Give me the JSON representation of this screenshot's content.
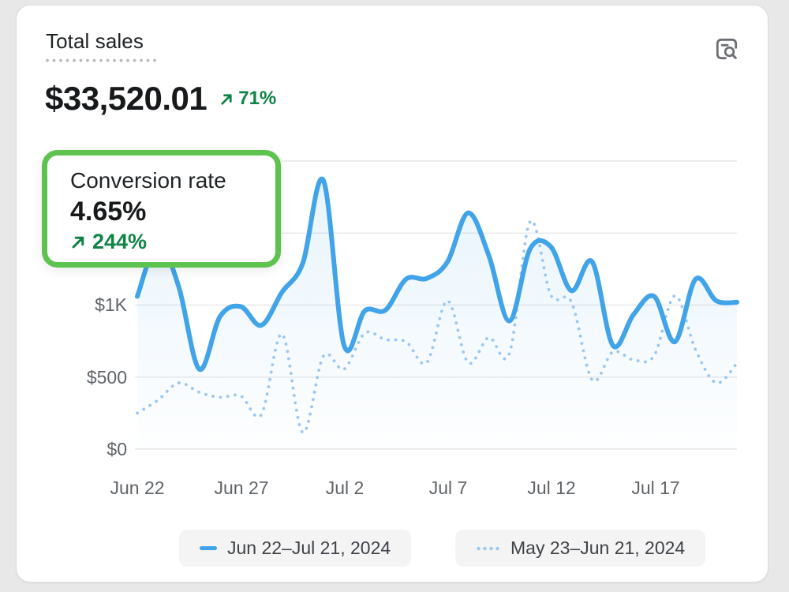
{
  "card": {
    "title": "Total sales",
    "value": "$33,520.01",
    "delta": "71%"
  },
  "tooltip": {
    "label": "Conversion rate",
    "value": "4.65%",
    "delta": "244%"
  },
  "icons": {
    "header_action": "view-report-magnifier-icon",
    "delta_arrow": "trend-up-arrow-icon"
  },
  "colors": {
    "primary_line": "#41a3e8",
    "compare_line": "#9cc7ef",
    "positive": "#0e8345",
    "highlight_border": "#5dc24e",
    "grid": "#e7e8e9",
    "axis_text": "#606468",
    "legend_bg": "#f4f4f5",
    "area_fill": "#41a3e8"
  },
  "chart_data": {
    "type": "line",
    "title": "Total sales over time",
    "xlabel": "",
    "ylabel": "",
    "ylim": [
      0,
      2000
    ],
    "grid_values": [
      0,
      500,
      1000,
      1500,
      2000
    ],
    "y_ticks": [
      "$0",
      "$500",
      "$1K"
    ],
    "x_ticks": [
      "Jun 22",
      "Jun 27",
      "Jul 2",
      "Jul 7",
      "Jul 12",
      "Jul 17"
    ],
    "x_tick_day_index": [
      0,
      5,
      10,
      15,
      20,
      25
    ],
    "legend_position": "bottom",
    "series": [
      {
        "name": "Jun 22–Jul 21, 2024",
        "style": "solid",
        "values": [
          1060,
          1430,
          1130,
          555,
          920,
          990,
          860,
          1090,
          1290,
          1865,
          720,
          960,
          965,
          1180,
          1185,
          1300,
          1640,
          1345,
          890,
          1390,
          1405,
          1100,
          1300,
          720,
          935,
          1060,
          745,
          1180,
          1030,
          1020
        ]
      },
      {
        "name": "May 23–Jun 21, 2024",
        "style": "dotted",
        "values": [
          250,
          340,
          460,
          395,
          360,
          370,
          240,
          800,
          115,
          645,
          555,
          805,
          760,
          745,
          600,
          1030,
          600,
          775,
          665,
          1580,
          1070,
          1020,
          480,
          675,
          620,
          650,
          1065,
          690,
          460,
          595
        ]
      }
    ]
  },
  "legend": [
    {
      "label": "Jun 22–Jul 21, 2024",
      "style": "solid"
    },
    {
      "label": "May 23–Jun 21, 2024",
      "style": "dotted"
    }
  ]
}
